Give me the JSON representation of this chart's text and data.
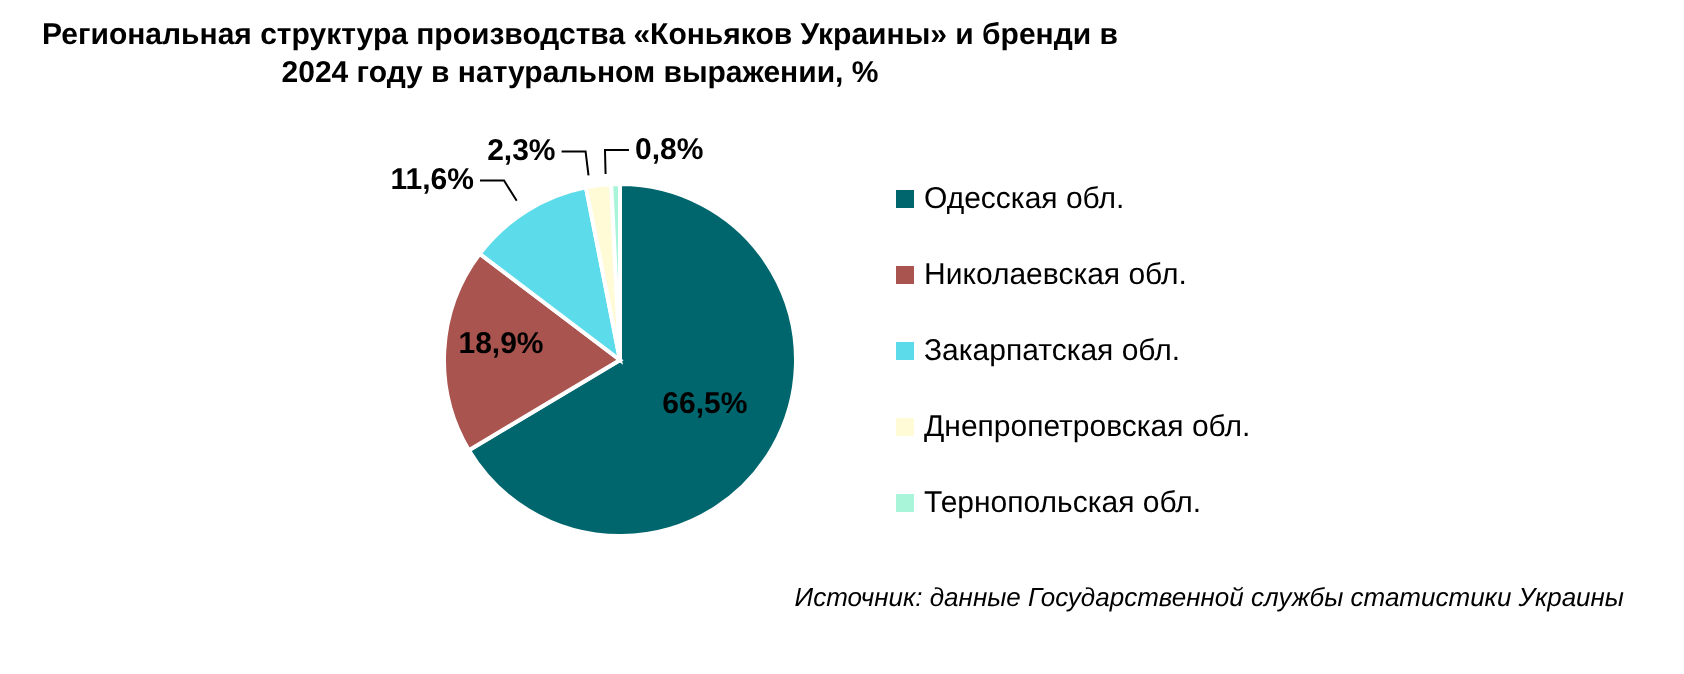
{
  "chart_data": {
    "type": "pie",
    "title": "Региональная структура производства «Коньяков Украины» и бренди в 2024 году в натуральном выражении, %",
    "categories": [
      "Одесская обл.",
      "Николаевская обл.",
      "Закарпатская обл.",
      "Днепропетровская обл.",
      "Тернопольская обл."
    ],
    "values": [
      66.5,
      18.9,
      11.6,
      2.3,
      0.8
    ],
    "colors": [
      "#00666e",
      "#a9544f",
      "#5cdbeb",
      "#fffbd6",
      "#a8f5d9"
    ],
    "value_labels": [
      "66,5%",
      "18,9%",
      "11,6%",
      "2,3%",
      "0,8%"
    ],
    "legend": "right",
    "annotations": [
      "Источник: данные Государственной службы статистики Украины"
    ]
  }
}
